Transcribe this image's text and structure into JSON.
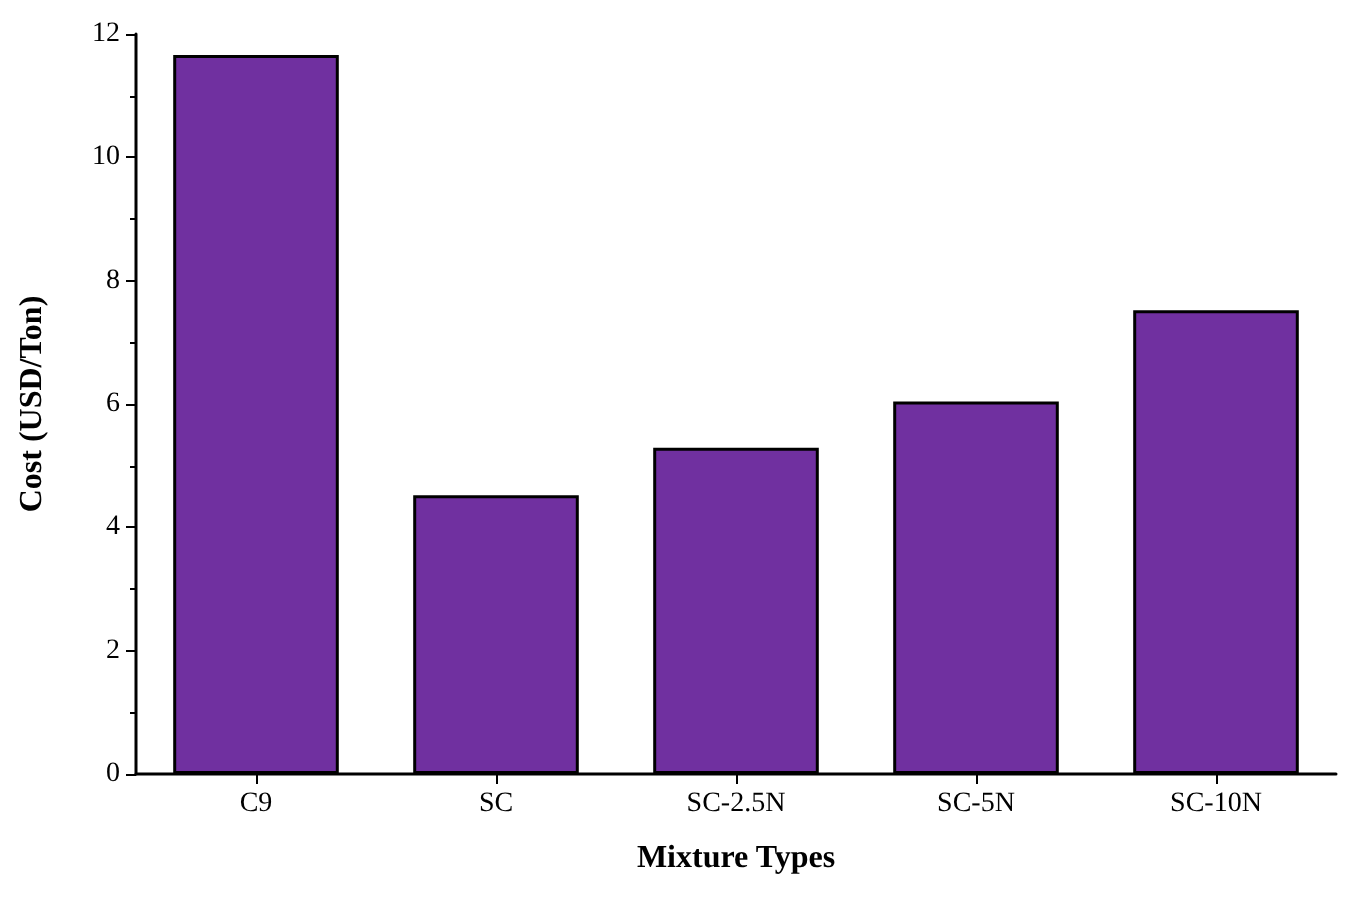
{
  "chart_data": {
    "type": "bar",
    "xlabel": "Mixture Types",
    "ylabel": "Cost (USD/Ton)",
    "categories": [
      "C9",
      "SC",
      "SC-2.5N",
      "SC-5N",
      "SC-10N"
    ],
    "values": [
      11.66,
      4.52,
      5.29,
      6.04,
      7.52
    ],
    "color": "#7030a0",
    "ylim": [
      0,
      12
    ],
    "yticks": [
      0,
      2,
      4,
      6,
      8,
      10,
      12
    ],
    "grid": false
  }
}
